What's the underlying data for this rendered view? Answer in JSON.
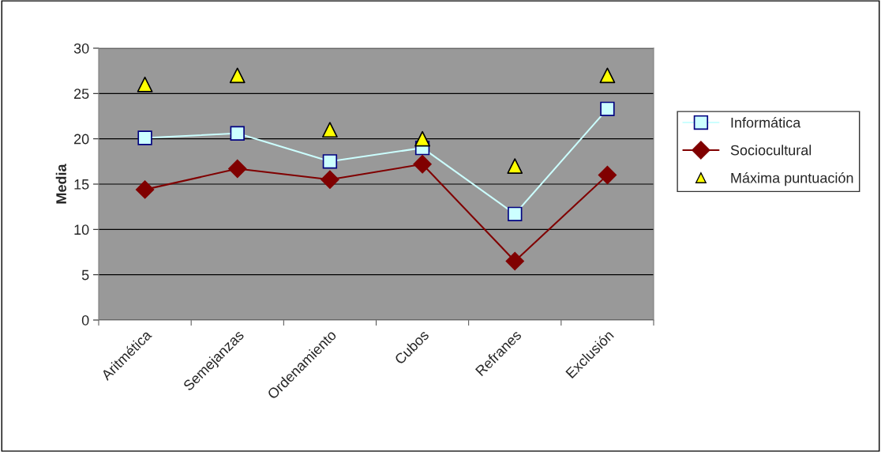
{
  "chart_data": {
    "type": "line",
    "ylabel": "Media",
    "categories": [
      "Aritmética",
      "Semejanzas",
      "Ordenamiento",
      "Cubos",
      "Refranes",
      "Exclusión"
    ],
    "series": [
      {
        "name": "Informática",
        "color": "#ccffff",
        "marker": "square",
        "values": [
          20.1,
          20.6,
          17.5,
          19.0,
          11.7,
          23.3
        ]
      },
      {
        "name": "Sociocultural",
        "color": "#800000",
        "marker": "diamond",
        "values": [
          14.4,
          16.7,
          15.5,
          17.2,
          6.5,
          16.0
        ]
      },
      {
        "name": "Máxima puntuación",
        "type": "scatter",
        "color": "#ffff00",
        "marker": "triangle",
        "values": [
          26,
          27,
          21,
          20,
          17,
          27
        ]
      }
    ],
    "ylim": [
      0,
      30
    ],
    "yticks": [
      0,
      5,
      10,
      15,
      20,
      25,
      30
    ],
    "grid": "y",
    "legend": "right"
  }
}
